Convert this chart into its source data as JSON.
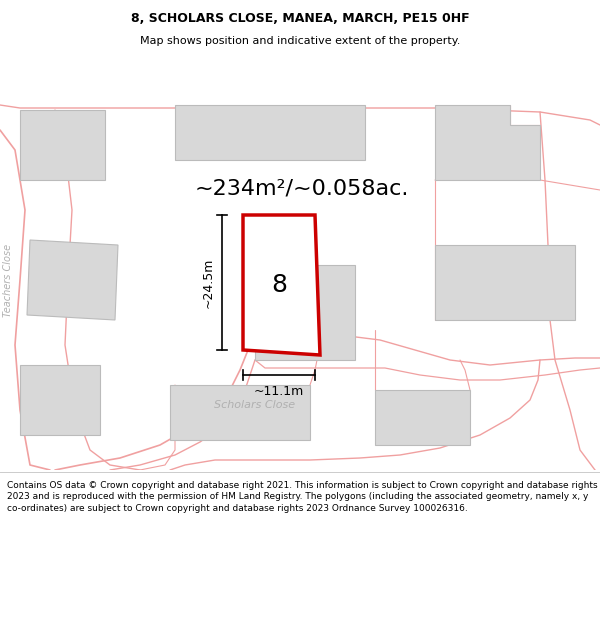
{
  "title": "8, SCHOLARS CLOSE, MANEA, MARCH, PE15 0HF",
  "subtitle": "Map shows position and indicative extent of the property.",
  "area_label": "~234m²/~0.058ac.",
  "number_label": "8",
  "dim_height": "~24.5m",
  "dim_width": "~11.1m",
  "street_label": "Scholars Close",
  "left_street_label": "Teachers Close",
  "footer": "Contains OS data © Crown copyright and database right 2021. This information is subject to Crown copyright and database rights 2023 and is reproduced with the permission of HM Land Registry. The polygons (including the associated geometry, namely x, y co-ordinates) are subject to Crown copyright and database rights 2023 Ordnance Survey 100026316.",
  "bg_color": "#ffffff",
  "plot_color": "#cc0000",
  "road_color": "#f0a0a0",
  "building_color": "#d8d8d8",
  "building_edge": "#bbbbbb",
  "title_fontsize": 9,
  "subtitle_fontsize": 8,
  "area_fontsize": 16,
  "number_fontsize": 18,
  "dim_fontsize": 9,
  "street_fontsize": 8,
  "footer_fontsize": 6.5
}
